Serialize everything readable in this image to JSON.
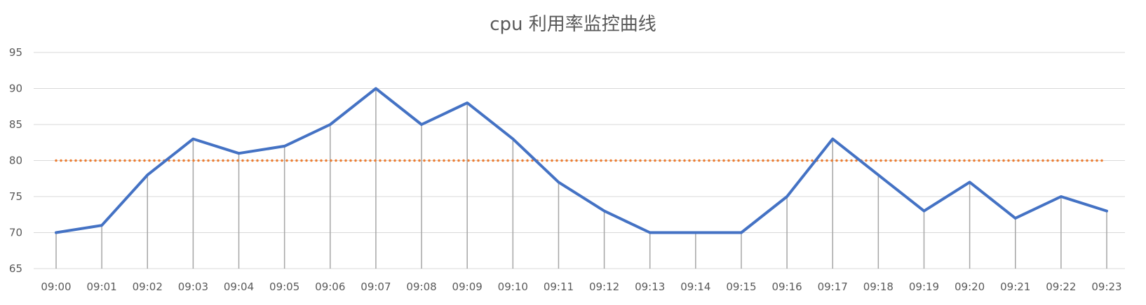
{
  "chart_data": {
    "type": "line",
    "title": "cpu 利用率监控曲线",
    "xlabel": "",
    "ylabel": "",
    "categories": [
      "09:00",
      "09:01",
      "09:02",
      "09:03",
      "09:04",
      "09:05",
      "09:06",
      "09:07",
      "09:08",
      "09:09",
      "09:10",
      "09:11",
      "09:12",
      "09:13",
      "09:14",
      "09:15",
      "09:16",
      "09:17",
      "09:18",
      "09:19",
      "09:20",
      "09:21",
      "09:22",
      "09:23"
    ],
    "ylim": [
      65,
      95
    ],
    "yticks": [
      65,
      70,
      75,
      80,
      85,
      90,
      95
    ],
    "grid": true,
    "legend": "none",
    "series": [
      {
        "values": [
          70,
          71,
          78,
          83,
          81,
          82,
          85,
          90,
          85,
          88,
          83,
          77,
          73,
          70,
          70,
          70,
          75,
          83,
          78,
          73,
          77,
          72,
          75,
          73
        ],
        "color": "#4472C4",
        "style": "solid"
      },
      {
        "values": [
          80,
          80,
          80,
          80,
          80,
          80,
          80,
          80,
          80,
          80,
          80,
          80,
          80,
          80,
          80,
          80,
          80,
          80,
          80,
          80,
          80,
          80,
          80,
          80
        ],
        "color": "#ED7D31",
        "style": "dotted"
      }
    ],
    "gridline_color": "#D9D9D9",
    "drop_line_color": "#A6A6A6"
  }
}
